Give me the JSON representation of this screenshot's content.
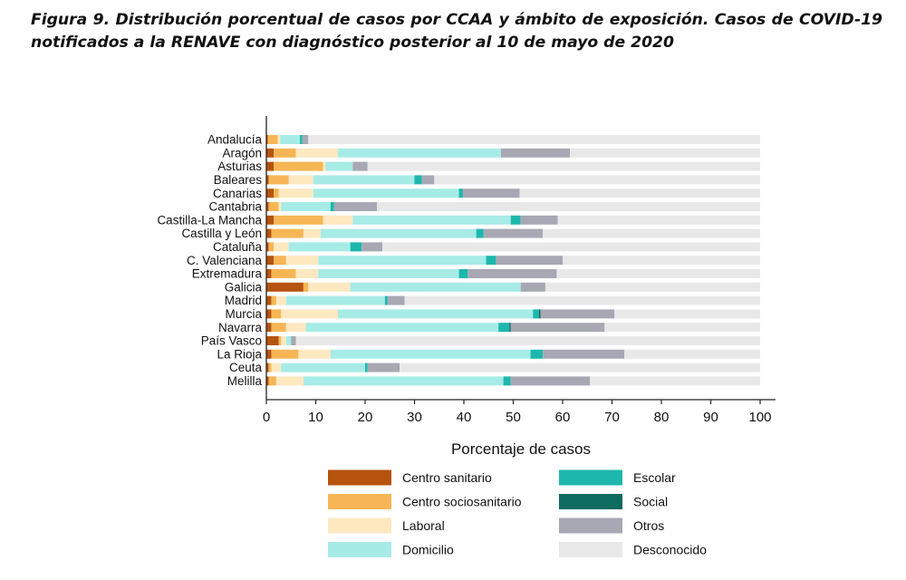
{
  "caption": "Figura 9. Distribución porcentual de casos por CCAA y ámbito de exposición. Casos de COVID-19 notificados a la RENAVE con diagnóstico posterior al 10 de mayo de 2020",
  "chart_data": {
    "type": "bar",
    "orientation": "horizontal",
    "stacked": true,
    "title": "",
    "xlabel": "Porcentaje de casos",
    "ylabel": "",
    "xlim": [
      0,
      100
    ],
    "xticks": [
      0,
      10,
      20,
      30,
      40,
      50,
      60,
      70,
      80,
      90,
      100
    ],
    "legend_position": "bottom",
    "categories": [
      "Andalucía",
      "Aragón",
      "Asturias",
      "Baleares",
      "Canarias",
      "Cantabria",
      "Castilla-La Mancha",
      "Castilla y León",
      "Cataluña",
      "C. Valenciana",
      "Extremadura",
      "Galicia",
      "Madrid",
      "Murcia",
      "Navarra",
      "País Vasco",
      "La Rioja",
      "Ceuta",
      "Melilla"
    ],
    "series": [
      {
        "name": "Centro sanitario",
        "color": "#b5530f",
        "values": [
          0.3,
          1.5,
          1.5,
          0.5,
          1.5,
          0.5,
          1.5,
          1.0,
          0.5,
          1.5,
          1.0,
          7.5,
          1.0,
          1.0,
          1.0,
          2.5,
          1.0,
          0.5,
          0.5
        ]
      },
      {
        "name": "Centro sociosanitario",
        "color": "#f6b655",
        "values": [
          2.0,
          4.5,
          10.0,
          4.0,
          1.0,
          2.0,
          10.0,
          6.5,
          1.0,
          2.5,
          5.0,
          1.0,
          1.0,
          2.0,
          3.0,
          0.5,
          5.5,
          0.5,
          1.5
        ]
      },
      {
        "name": "Laboral",
        "color": "#fde8c0",
        "values": [
          0.5,
          8.5,
          0.5,
          5.0,
          7.0,
          0.5,
          6.0,
          3.5,
          3.0,
          6.5,
          4.5,
          8.5,
          2.0,
          11.5,
          4.0,
          1.0,
          6.5,
          2.0,
          5.5
        ]
      },
      {
        "name": "Domicilio",
        "color": "#a7ebe6",
        "values": [
          4.0,
          33.0,
          5.5,
          20.5,
          29.5,
          10.0,
          32.0,
          31.5,
          12.5,
          34.0,
          28.5,
          34.5,
          20.0,
          39.5,
          39.0,
          1.0,
          40.5,
          17.0,
          40.5
        ]
      },
      {
        "name": "Escolar",
        "color": "#1db7ad",
        "values": [
          0.5,
          0.0,
          0.0,
          1.5,
          0.8,
          0.7,
          2.0,
          1.5,
          2.3,
          2.0,
          1.8,
          0.0,
          0.5,
          1.2,
          2.2,
          0.0,
          2.5,
          0.5,
          1.5
        ]
      },
      {
        "name": "Social",
        "color": "#0e6b60",
        "values": [
          0.0,
          0.0,
          0.0,
          0.0,
          0.0,
          0.0,
          0.0,
          0.0,
          0.0,
          0.0,
          0.0,
          0.0,
          0.0,
          0.3,
          0.3,
          0.0,
          0.0,
          0.0,
          0.0
        ]
      },
      {
        "name": "Otros",
        "color": "#a8a8b4",
        "values": [
          1.2,
          14.0,
          3.0,
          2.5,
          11.5,
          8.7,
          7.5,
          12.0,
          4.2,
          13.5,
          18.0,
          5.0,
          3.5,
          15.0,
          19.0,
          1.0,
          16.5,
          6.5,
          16.0
        ]
      },
      {
        "name": "Desconocido",
        "color": "#e8e8e8",
        "values": [
          91.5,
          38.5,
          79.5,
          66.0,
          48.7,
          77.6,
          41.0,
          44.0,
          76.5,
          40.0,
          41.2,
          43.5,
          72.0,
          29.5,
          31.5,
          94.0,
          27.5,
          73.0,
          34.5
        ]
      }
    ]
  }
}
